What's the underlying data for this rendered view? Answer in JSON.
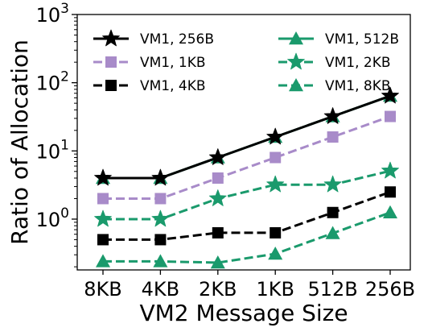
{
  "chart_data": {
    "type": "line",
    "title": "",
    "xlabel": "VM2 Message Size",
    "ylabel": "Ratio of Allocation",
    "categories": [
      "8KB",
      "4KB",
      "2KB",
      "1KB",
      "512B",
      "256B"
    ],
    "yscale": "log",
    "ylim": [
      0.18,
      1000
    ],
    "yticks": [
      1,
      10,
      100,
      1000
    ],
    "ytick_labels": [
      {
        "base": "10",
        "exp": "0"
      },
      {
        "base": "10",
        "exp": "1"
      },
      {
        "base": "10",
        "exp": "2"
      },
      {
        "base": "10",
        "exp": "3"
      }
    ],
    "grid": false,
    "legend": {
      "placement": "top",
      "columns": 2
    },
    "series": [
      {
        "name": "VM1, 256B",
        "values": [
          4,
          4,
          8,
          16,
          32,
          64
        ],
        "color": "#000000",
        "linestyle": "solid",
        "marker": "star"
      },
      {
        "name": "VM1, 512B",
        "values": [
          4,
          4,
          8,
          16,
          32,
          64
        ],
        "color": "#1a9a6c",
        "linestyle": "solid",
        "marker": "triangle"
      },
      {
        "name": "VM1, 1KB",
        "values": [
          2,
          2,
          4,
          8,
          16,
          32
        ],
        "color": "#a88bc9",
        "linestyle": "dashed",
        "marker": "square"
      },
      {
        "name": "VM1, 2KB",
        "values": [
          1,
          1,
          2,
          3.2,
          3.2,
          5.1
        ],
        "color": "#1a9a6c",
        "linestyle": "dashed",
        "marker": "star"
      },
      {
        "name": "VM1, 4KB",
        "values": [
          0.5,
          0.5,
          0.63,
          0.63,
          1.25,
          2.5
        ],
        "color": "#000000",
        "linestyle": "dashed",
        "marker": "square"
      },
      {
        "name": "VM1, 8KB",
        "values": [
          0.24,
          0.24,
          0.23,
          0.31,
          0.62,
          1.25
        ],
        "color": "#1a9a6c",
        "linestyle": "dashed",
        "marker": "triangle"
      }
    ]
  }
}
